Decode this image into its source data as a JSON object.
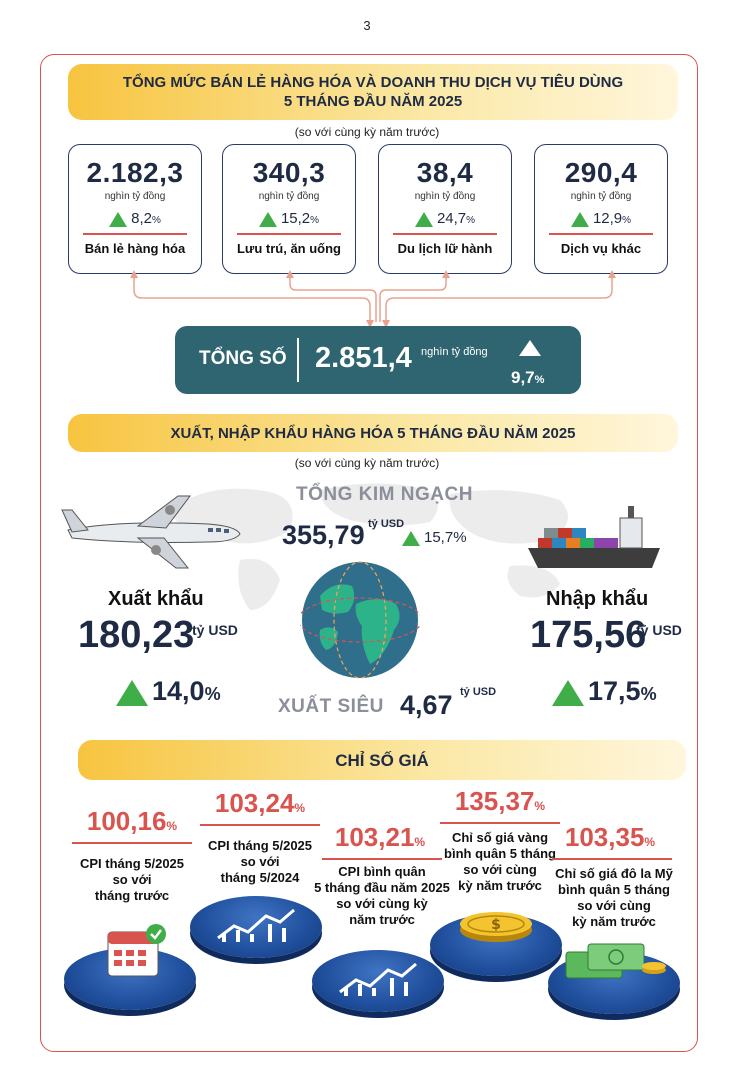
{
  "page_number": "3",
  "retail": {
    "title_line1": "TỔNG MỨC BÁN LẺ HÀNG HÓA VÀ DOANH THU DỊCH VỤ TIÊU DÙNG",
    "title_line2": "5 THÁNG ĐẦU NĂM 2025",
    "subtitle": "(so với cùng kỳ năm trước)",
    "cards": [
      {
        "value": "2.182,3",
        "unit": "nghìn tỷ đồng",
        "change": "8,2",
        "pct": "%",
        "label": "Bán lẻ hàng hóa"
      },
      {
        "value": "340,3",
        "unit": "nghìn tỷ đồng",
        "change": "15,2",
        "pct": "%",
        "label": "Lưu trú, ăn uống"
      },
      {
        "value": "38,4",
        "unit": "nghìn tỷ đồng",
        "change": "24,7",
        "pct": "%",
        "label": "Du lịch lữ hành"
      },
      {
        "value": "290,4",
        "unit": "nghìn tỷ đồng",
        "change": "12,9",
        "pct": "%",
        "label": "Dịch vụ khác"
      }
    ],
    "total_label": "TỔNG SỐ",
    "total_value": "2.851,4",
    "total_unit": "nghìn tỷ đồng",
    "total_change": "9,7",
    "total_pct": "%"
  },
  "trade": {
    "title": "XUẤT, NHẬP KHẨU HÀNG HÓA 5 THÁNG ĐẦU NĂM 2025",
    "subtitle": "(so với cùng kỳ năm trước)",
    "total_label": "TỔNG KIM NGẠCH",
    "total_value": "355,79",
    "total_unit": "tỷ USD",
    "total_change": "15,7%",
    "export_label": "Xuất khẩu",
    "export_value": "180,23",
    "export_unit": "tỷ USD",
    "export_change": "14,0",
    "import_label": "Nhập khẩu",
    "import_value": "175,56",
    "import_unit": "tỷ USD",
    "import_change": "17,5",
    "pct": "%",
    "surplus_label": "XUẤT SIÊU",
    "surplus_value": "4,67",
    "surplus_unit": "tỷ USD"
  },
  "prices": {
    "title": "CHỈ SỐ GIÁ",
    "items": [
      {
        "value": "100,16",
        "pct": "%",
        "line1": "CPI tháng 5/2025",
        "line2": "so với",
        "line3": "tháng trước",
        "line4": ""
      },
      {
        "value": "103,24",
        "pct": "%",
        "line1": "CPI tháng 5/2025",
        "line2": "so với",
        "line3": "tháng 5/2024",
        "line4": ""
      },
      {
        "value": "103,21",
        "pct": "%",
        "line1": "CPI bình quân",
        "line2": "5 tháng đầu năm 2025",
        "line3": "so với cùng kỳ",
        "line4": "năm trước"
      },
      {
        "value": "135,37",
        "pct": "%",
        "line1": "Chỉ số giá vàng",
        "line2": "bình quân 5 tháng",
        "line3": "so với cùng",
        "line4": "kỳ năm trước"
      },
      {
        "value": "103,35",
        "pct": "%",
        "line1": "Chỉ số giá đô la Mỹ",
        "line2": "bình quân 5 tháng",
        "line3": "so với cùng",
        "line4": "kỳ năm trước"
      }
    ]
  },
  "colors": {
    "accent_red": "#d9534f",
    "navy": "#1f2a44",
    "teal": "#2f6570",
    "green": "#3fae49",
    "gold": "#f7c43f"
  }
}
